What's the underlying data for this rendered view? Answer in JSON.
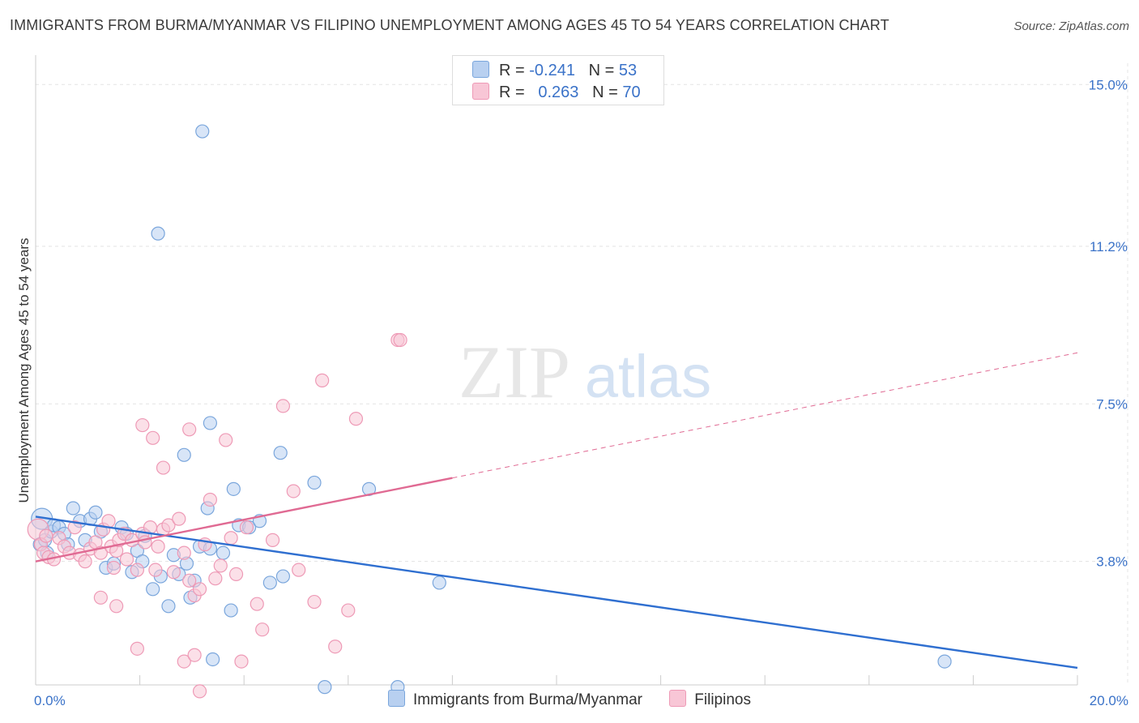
{
  "title": "IMMIGRANTS FROM BURMA/MYANMAR VS FILIPINO UNEMPLOYMENT AMONG AGES 45 TO 54 YEARS CORRELATION CHART",
  "source": "Source: ZipAtlas.com",
  "legend": {
    "r_label": "R =",
    "n_label": "N =",
    "rows": [
      {
        "r": "-0.241",
        "n": "53"
      },
      {
        "r": "0.263",
        "n": "70"
      }
    ]
  },
  "colors": {
    "blue_fill": "#b8d0f0",
    "blue_stroke": "#7aa6dc",
    "blue_line": "#2f6fd0",
    "pink_fill": "#f8c6d6",
    "pink_stroke": "#ee9ab6",
    "pink_line": "#e06a93",
    "tick_text": "#3a72c8",
    "grid": "#e3e3e3"
  },
  "chart_data": {
    "type": "scatter",
    "title": "IMMIGRANTS FROM BURMA/MYANMAR VS FILIPINO UNEMPLOYMENT AMONG AGES 45 TO 54 YEARS CORRELATION CHART",
    "xlabel": "",
    "ylabel": "Unemployment Among Ages 45 to 54 years",
    "xlim": [
      0,
      20
    ],
    "ylim": [
      0.9,
      15.5
    ],
    "y_ticks": [
      3.8,
      7.5,
      11.2,
      15.0
    ],
    "y_tick_labels": [
      "3.8%",
      "7.5%",
      "11.2%",
      "15.0%"
    ],
    "x_tick_labels": [
      "0.0%",
      "20.0%"
    ],
    "grid": true,
    "watermark": {
      "zip": "ZIP",
      "atlas": "atlas"
    },
    "series": [
      {
        "name": "Immigrants from Burma/Myanmar",
        "r": -0.241,
        "n": 53,
        "trend": {
          "x0": 0.0,
          "y0": 4.85,
          "x1": 20.0,
          "y1": 1.3,
          "solid_to": 20.0
        },
        "points": [
          [
            0.08,
            4.2,
            1
          ],
          [
            0.12,
            4.8,
            2
          ],
          [
            0.18,
            4.3,
            1
          ],
          [
            0.22,
            4.0,
            1
          ],
          [
            0.3,
            4.5,
            1
          ],
          [
            0.35,
            4.65,
            1
          ],
          [
            0.45,
            4.6,
            1
          ],
          [
            0.55,
            4.45,
            1
          ],
          [
            0.62,
            4.2,
            1
          ],
          [
            0.72,
            5.05,
            1
          ],
          [
            0.85,
            4.75,
            1
          ],
          [
            0.95,
            4.3,
            1
          ],
          [
            1.05,
            4.8,
            1
          ],
          [
            1.15,
            4.95,
            1
          ],
          [
            1.25,
            4.5,
            1
          ],
          [
            1.35,
            3.65,
            1
          ],
          [
            1.5,
            3.75,
            1
          ],
          [
            1.65,
            4.6,
            1
          ],
          [
            1.75,
            4.45,
            1
          ],
          [
            1.85,
            3.55,
            1
          ],
          [
            1.95,
            4.05,
            1
          ],
          [
            2.05,
            3.8,
            1
          ],
          [
            2.1,
            4.4,
            1
          ],
          [
            2.25,
            3.15,
            1
          ],
          [
            2.35,
            11.5,
            1
          ],
          [
            2.4,
            3.45,
            1
          ],
          [
            2.55,
            2.75,
            1
          ],
          [
            2.65,
            3.95,
            1
          ],
          [
            2.75,
            3.5,
            1
          ],
          [
            2.85,
            6.3,
            1
          ],
          [
            2.9,
            3.75,
            1
          ],
          [
            2.97,
            2.95,
            1
          ],
          [
            3.05,
            3.35,
            1
          ],
          [
            3.15,
            4.15,
            1
          ],
          [
            3.3,
            5.05,
            1
          ],
          [
            3.35,
            4.1,
            1
          ],
          [
            3.2,
            13.9,
            1
          ],
          [
            3.35,
            7.05,
            1
          ],
          [
            3.4,
            1.5,
            1
          ],
          [
            3.6,
            4.0,
            1
          ],
          [
            3.75,
            2.65,
            1
          ],
          [
            3.8,
            5.5,
            1
          ],
          [
            3.9,
            4.65,
            1
          ],
          [
            4.1,
            4.6,
            1
          ],
          [
            4.3,
            4.75,
            1
          ],
          [
            4.5,
            3.3,
            1
          ],
          [
            4.75,
            3.45,
            1
          ],
          [
            4.7,
            6.35,
            1
          ],
          [
            5.35,
            5.65,
            1
          ],
          [
            5.55,
            0.85,
            1
          ],
          [
            6.4,
            5.5,
            1
          ],
          [
            6.95,
            0.85,
            1
          ],
          [
            7.75,
            3.3,
            1
          ],
          [
            17.45,
            1.45,
            1
          ]
        ]
      },
      {
        "name": "Filipinos",
        "r": 0.263,
        "n": 70,
        "trend": {
          "x0": 0.0,
          "y0": 3.8,
          "x1": 20.0,
          "y1": 8.7,
          "solid_to": 8.0
        },
        "points": [
          [
            0.05,
            4.55,
            2
          ],
          [
            0.1,
            4.2,
            1
          ],
          [
            0.15,
            4.0,
            1
          ],
          [
            0.2,
            4.4,
            1
          ],
          [
            0.25,
            3.9,
            1
          ],
          [
            0.35,
            3.85,
            1
          ],
          [
            0.45,
            4.35,
            1
          ],
          [
            0.55,
            4.15,
            1
          ],
          [
            0.65,
            4.0,
            1
          ],
          [
            0.75,
            4.6,
            1
          ],
          [
            0.85,
            3.95,
            1
          ],
          [
            0.95,
            3.8,
            1
          ],
          [
            1.05,
            4.1,
            1
          ],
          [
            1.15,
            4.25,
            1
          ],
          [
            1.25,
            4.0,
            1
          ],
          [
            1.3,
            4.55,
            1
          ],
          [
            1.4,
            4.75,
            1
          ],
          [
            1.45,
            4.15,
            1
          ],
          [
            1.5,
            3.65,
            1
          ],
          [
            1.55,
            4.05,
            1
          ],
          [
            1.6,
            4.3,
            1
          ],
          [
            1.7,
            4.45,
            1
          ],
          [
            1.75,
            3.85,
            1
          ],
          [
            1.85,
            4.3,
            1
          ],
          [
            1.95,
            3.6,
            1
          ],
          [
            2.05,
            4.45,
            1
          ],
          [
            2.1,
            4.25,
            1
          ],
          [
            2.2,
            4.6,
            1
          ],
          [
            2.3,
            3.6,
            1
          ],
          [
            2.35,
            4.15,
            1
          ],
          [
            2.45,
            4.55,
            1
          ],
          [
            2.55,
            4.65,
            1
          ],
          [
            2.65,
            3.55,
            1
          ],
          [
            2.75,
            4.8,
            1
          ],
          [
            2.85,
            4.0,
            1
          ],
          [
            2.95,
            3.35,
            1
          ],
          [
            3.05,
            3.0,
            1
          ],
          [
            3.15,
            3.15,
            1
          ],
          [
            3.25,
            4.2,
            1
          ],
          [
            3.35,
            5.25,
            1
          ],
          [
            3.45,
            3.4,
            1
          ],
          [
            3.55,
            3.7,
            1
          ],
          [
            3.65,
            6.65,
            1
          ],
          [
            3.75,
            4.35,
            1
          ],
          [
            3.85,
            3.5,
            1
          ],
          [
            4.05,
            4.6,
            1
          ],
          [
            4.25,
            2.8,
            1
          ],
          [
            4.35,
            2.2,
            1
          ],
          [
            4.55,
            4.3,
            1
          ],
          [
            4.75,
            7.45,
            1
          ],
          [
            4.95,
            5.45,
            1
          ],
          [
            5.05,
            3.6,
            1
          ],
          [
            5.35,
            2.85,
            1
          ],
          [
            5.5,
            8.05,
            1
          ],
          [
            5.75,
            1.8,
            1
          ],
          [
            6.0,
            2.65,
            1
          ],
          [
            6.15,
            7.15,
            1
          ],
          [
            6.95,
            9.0,
            1
          ],
          [
            7.0,
            9.0,
            1
          ],
          [
            2.05,
            7.0,
            1
          ],
          [
            2.25,
            6.7,
            1
          ],
          [
            2.45,
            6.0,
            1
          ],
          [
            2.95,
            6.9,
            1
          ],
          [
            1.25,
            2.95,
            1
          ],
          [
            1.55,
            2.75,
            1
          ],
          [
            1.95,
            1.75,
            1
          ],
          [
            2.85,
            1.45,
            1
          ],
          [
            3.15,
            0.75,
            1
          ],
          [
            3.05,
            1.6,
            1
          ],
          [
            3.95,
            1.45,
            1
          ]
        ]
      }
    ]
  },
  "bottom_legend": [
    "Immigrants from Burma/Myanmar",
    "Filipinos"
  ]
}
